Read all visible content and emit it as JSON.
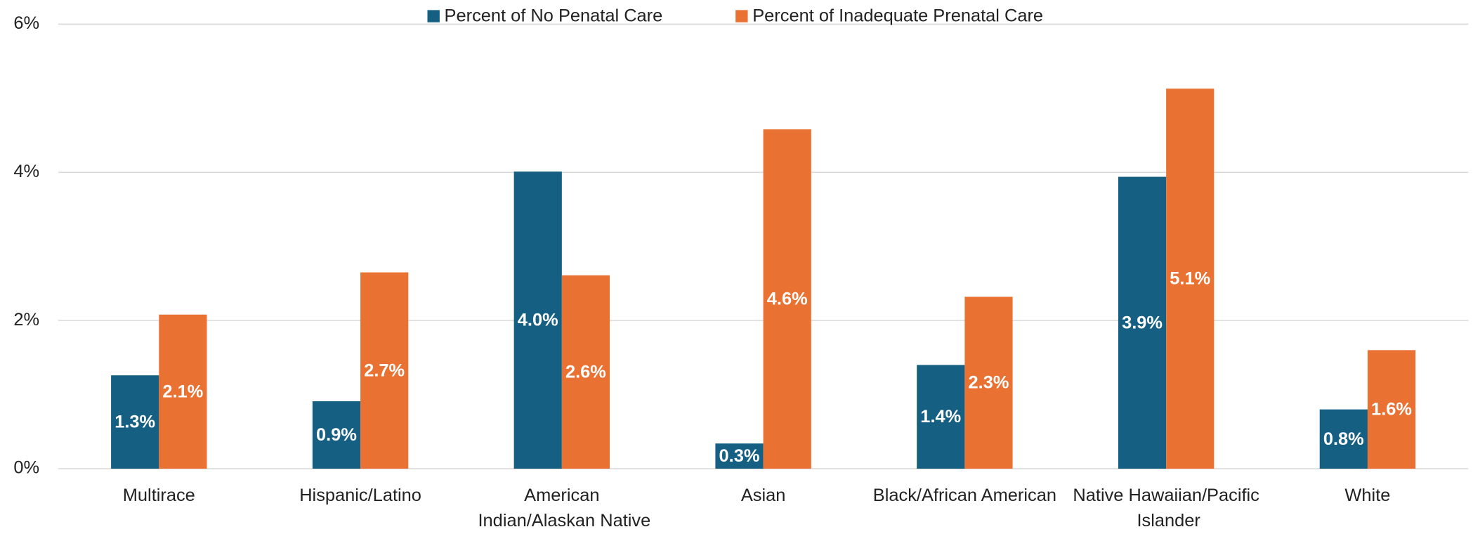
{
  "chart_data": {
    "type": "bar",
    "categories": [
      "Multirace",
      "Hispanic/Latino",
      "American Indian/Alaskan Native",
      "Asian",
      "Black/African American",
      "Native Hawaiian/Pacific Islander",
      "White"
    ],
    "series": [
      {
        "name": "Percent of No Penatal Care",
        "color": "#156082",
        "values": [
          1.26,
          0.91,
          4.01,
          0.34,
          1.4,
          3.94,
          0.8
        ],
        "value_labels": [
          "1.3%",
          "0.9%",
          "4.0%",
          "0.3%",
          "1.4%",
          "3.9%",
          "0.8%"
        ]
      },
      {
        "name": "Percent of Inadequate Prenatal Care",
        "color": "#e97132",
        "values": [
          2.08,
          2.65,
          2.61,
          4.58,
          2.32,
          5.13,
          1.6
        ],
        "value_labels": [
          "2.1%",
          "2.7%",
          "2.6%",
          "4.6%",
          "2.3%",
          "5.1%",
          "1.6%"
        ]
      }
    ],
    "ylim": [
      0,
      6
    ],
    "yticks": [
      {
        "value": 0,
        "label": "0%"
      },
      {
        "value": 2,
        "label": "2%"
      },
      {
        "value": 4,
        "label": "4%"
      },
      {
        "value": 6,
        "label": "6%"
      }
    ],
    "grid": true,
    "legend": "top"
  }
}
